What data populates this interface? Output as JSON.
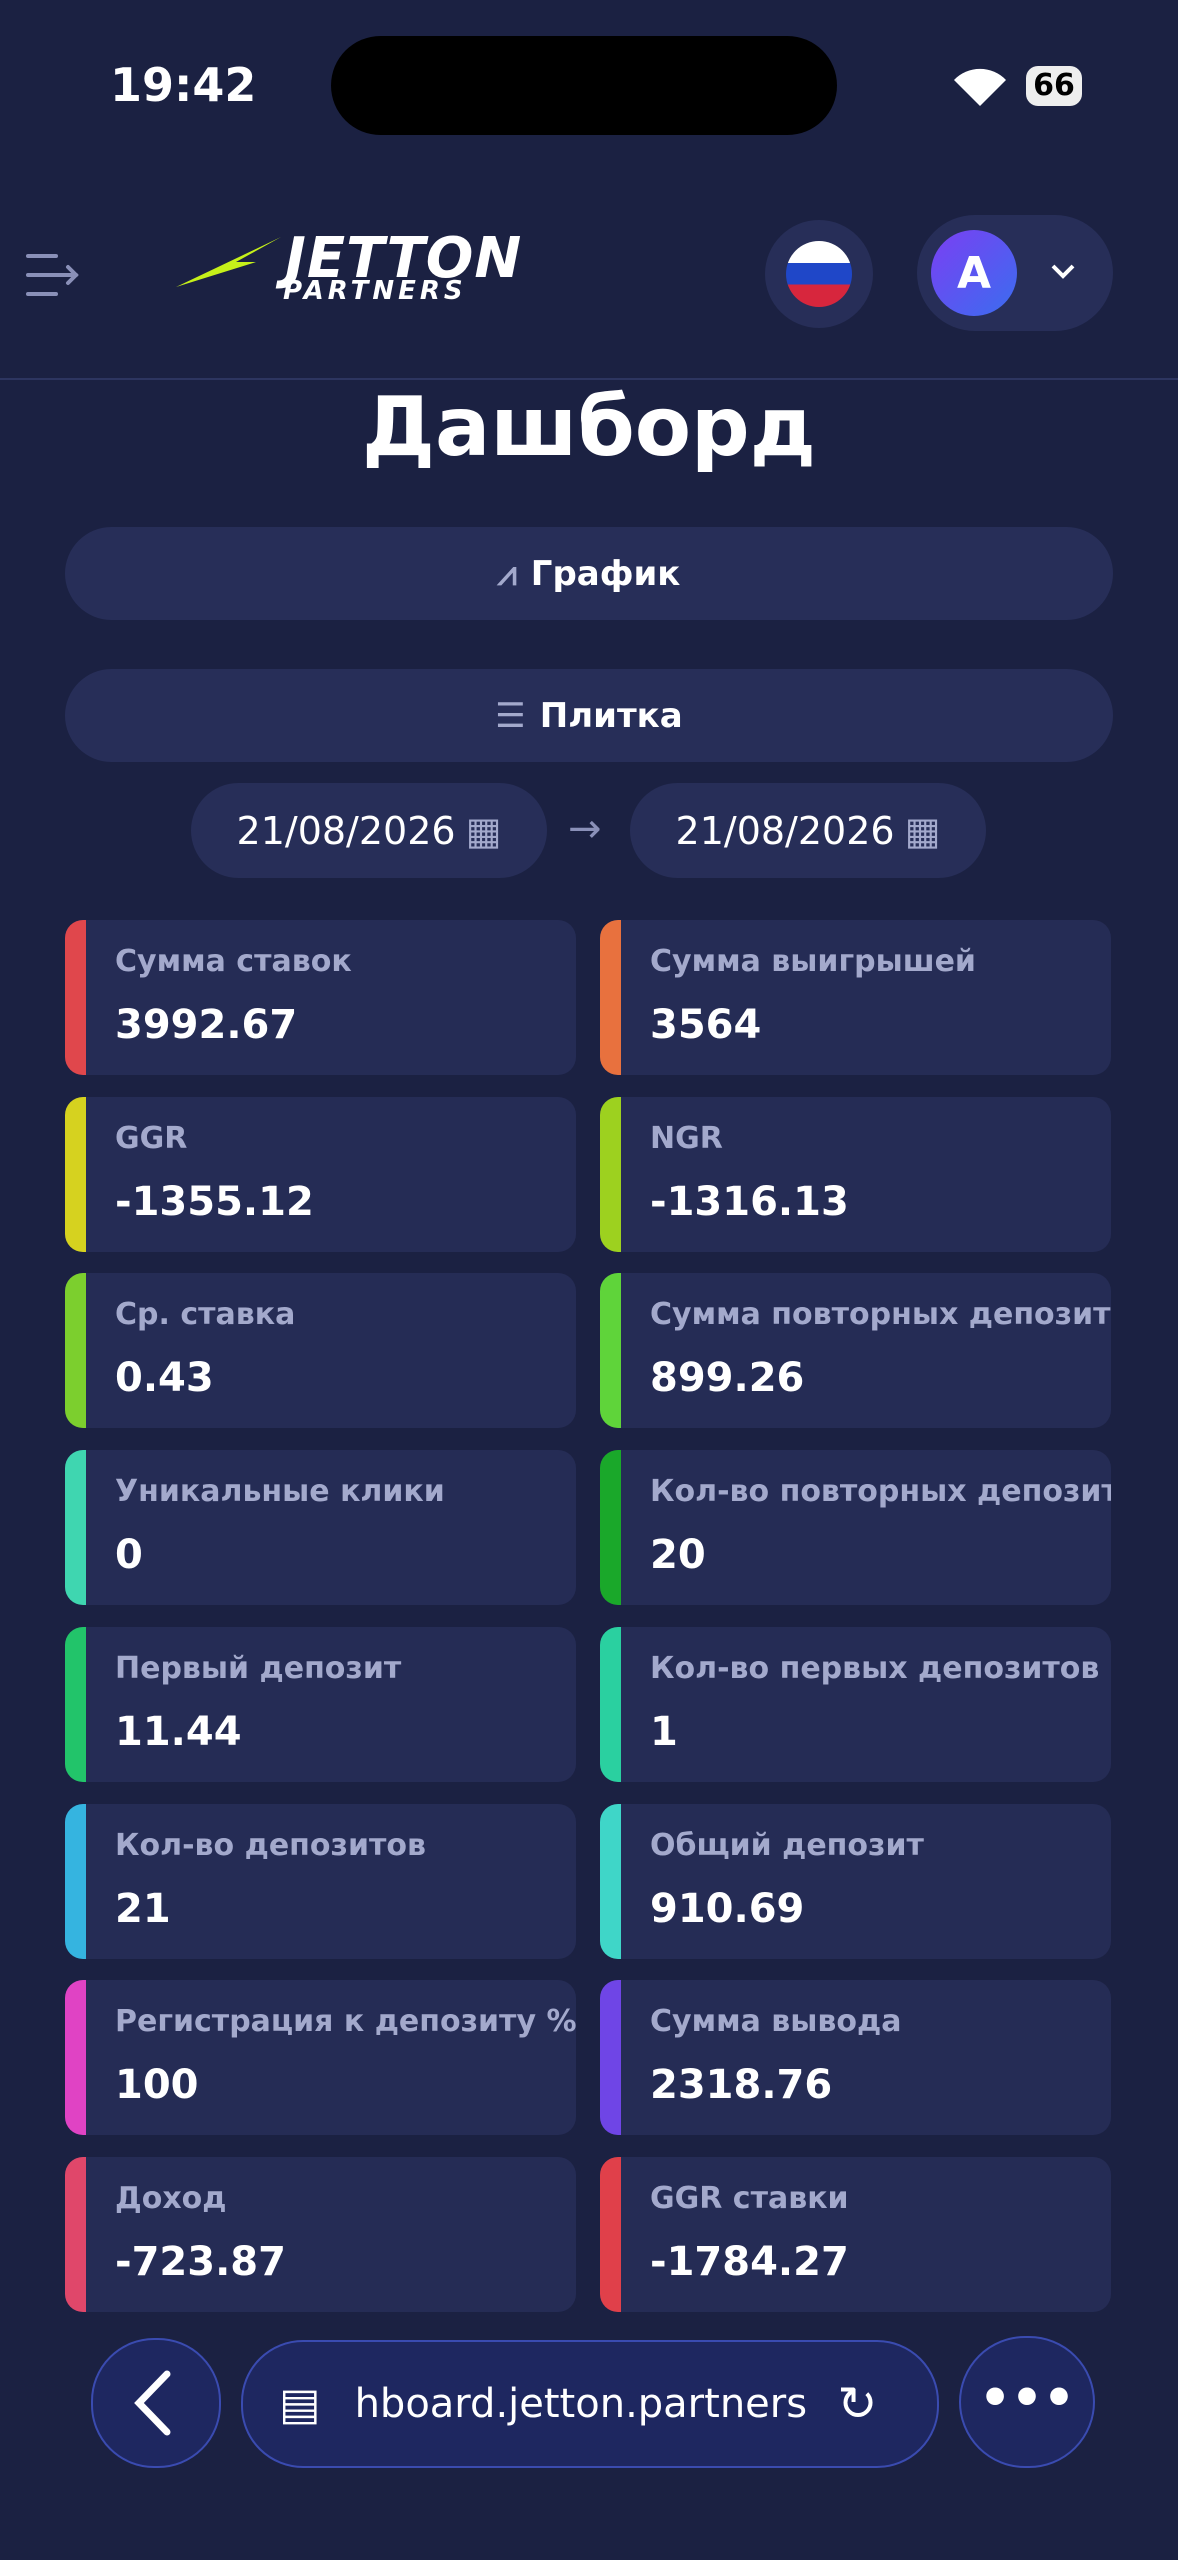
{
  "status_bar": {
    "time": "19:42",
    "battery": "66"
  },
  "header": {
    "logo": "JETTON",
    "logo_sub": "PARTNERS",
    "avatar": "A"
  },
  "title": "Дашборд",
  "buttons": [
    "График",
    "Плитка"
  ],
  "date_range": {
    "from": "21/08/2026",
    "to": "21/08/2026"
  },
  "cards": [
    {
      "label": "Сумма ставок",
      "value": "3992.67"
    },
    {
      "label": "Сумма выигрышей",
      "value": "3564"
    },
    {
      "label": "GGR",
      "value": "-1355.12"
    },
    {
      "label": "NGR",
      "value": "-1316.13"
    },
    {
      "label": "Ср. ставка",
      "value": "0.43"
    },
    {
      "label": "Сумма повторных депозитов",
      "value": "899.26"
    },
    {
      "label": "Уникальные клики",
      "value": "0"
    },
    {
      "label": "Кол-во повторных депозитов",
      "value": "20"
    },
    {
      "label": "Первый депозит",
      "value": "11.44"
    },
    {
      "label": "Кол-во первых депозитов",
      "value": "1"
    },
    {
      "label": "Кол-во депозитов",
      "value": "21"
    },
    {
      "label": "Общий депозит",
      "value": "910.69"
    },
    {
      "label": "Регистрация к депозиту %",
      "value": "100"
    },
    {
      "label": "Сумма вывода",
      "value": "2318.76"
    },
    {
      "label": "Доход",
      "value": "-723.87"
    },
    {
      "label": "GGR ставки",
      "value": "-1784.27"
    }
  ],
  "browser": {
    "url": "hboard.jetton.partners"
  }
}
